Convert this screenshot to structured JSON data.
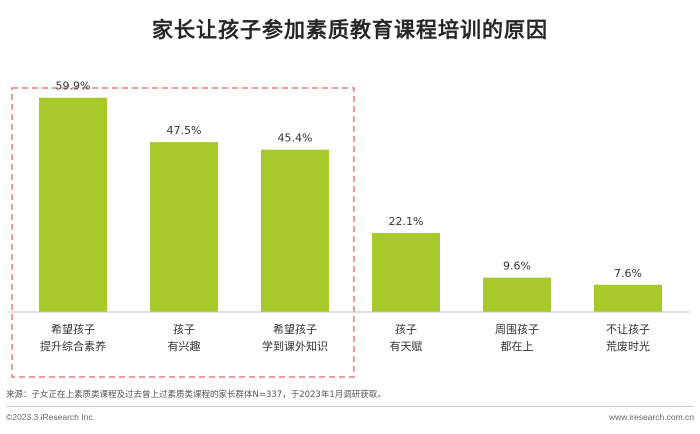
{
  "title": "家长让孩子参加素质教育课程培训的原因",
  "chart_data": {
    "type": "bar",
    "categories": [
      [
        "希望孩子",
        "提升综合素养"
      ],
      [
        "孩子",
        "有兴趣"
      ],
      [
        "希望孩子",
        "学到课外知识"
      ],
      [
        "孩子",
        "有天赋"
      ],
      [
        "周围孩子",
        "都在上"
      ],
      [
        "不让孩子",
        "荒废时光"
      ]
    ],
    "values": [
      59.9,
      47.5,
      45.4,
      22.1,
      9.6,
      7.6
    ],
    "value_labels": [
      "59.9%",
      "47.5%",
      "45.4%",
      "22.1%",
      "9.6%",
      "7.6%"
    ],
    "unit": "%",
    "ylim": [
      0,
      70
    ],
    "grid": false,
    "bar_color": "#a8c92a",
    "highlight": {
      "from_index": 0,
      "to_index": 2,
      "style": "dashed",
      "color": "#e87c7c"
    }
  },
  "source": "来源：子女正在上素质类课程及过去曾上过素质类课程的家长群体N=337，于2023年1月调研获取。",
  "copyright": "©2023.3 iResearch Inc.",
  "website": "www.iresearch.com.cn",
  "colors": {
    "bar": "#a8c92a",
    "highlight_box": "#e87c7c",
    "axis": "#bfbfbf"
  }
}
